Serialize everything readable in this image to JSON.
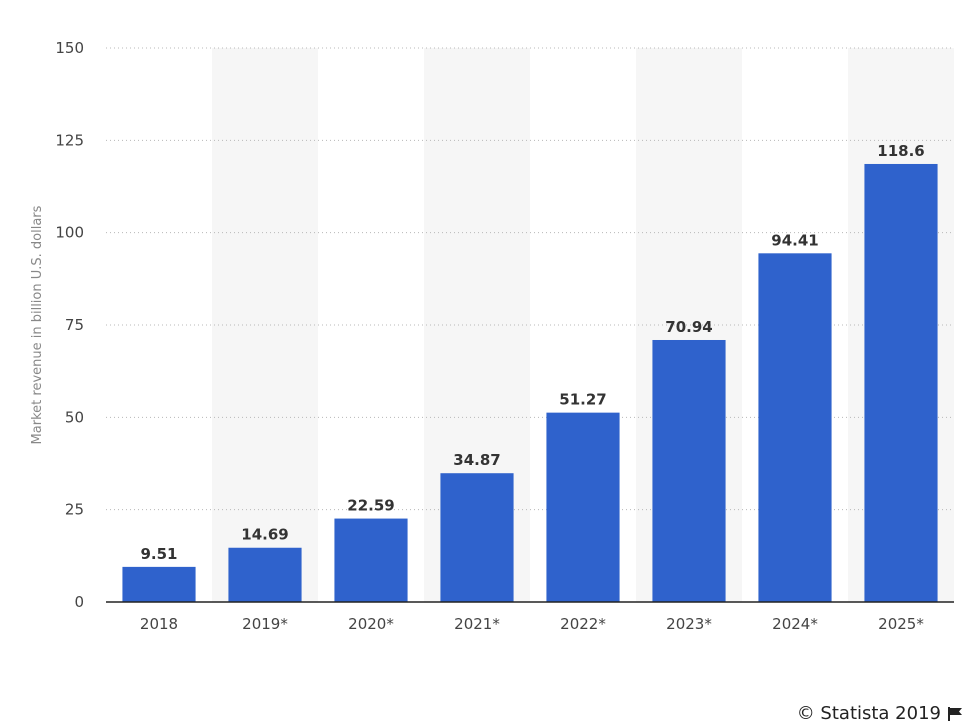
{
  "chart_data": {
    "type": "bar",
    "categories": [
      "2018",
      "2019*",
      "2020*",
      "2021*",
      "2022*",
      "2023*",
      "2024*",
      "2025*"
    ],
    "values": [
      9.51,
      14.69,
      22.59,
      34.87,
      51.27,
      70.94,
      94.41,
      118.6
    ],
    "data_labels": [
      "9.51",
      "14.69",
      "22.59",
      "34.87",
      "51.27",
      "70.94",
      "94.41",
      "118.6"
    ],
    "ylabel": "Market revenue in billion U.S. dollars",
    "ylim": [
      0,
      150
    ],
    "yticks": [
      0,
      25,
      50,
      75,
      100,
      125,
      150
    ],
    "grid": true,
    "bar_color": "#2f62cc",
    "alt_band_color": "#f6f6f6"
  },
  "credit": {
    "text": "© Statista 2019",
    "icon": "flag-icon"
  }
}
